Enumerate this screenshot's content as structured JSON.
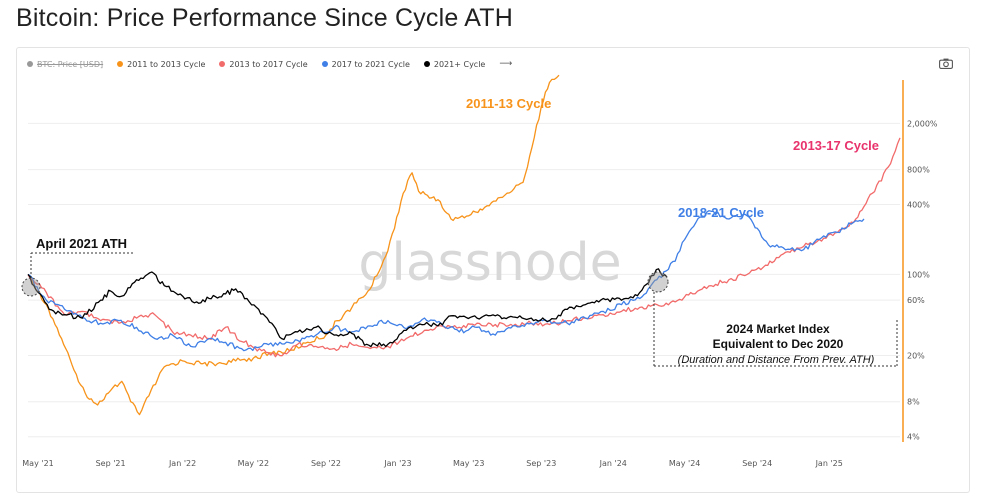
{
  "page": {
    "title": "Bitcoin: Price Performance Since Cycle ATH"
  },
  "toolbar": {
    "camera_icon": "camera-icon"
  },
  "legend": {
    "items": [
      {
        "label": "BTC: Price [USD]",
        "color": "#999999",
        "hidden": true
      },
      {
        "label": "2011 to 2013 Cycle",
        "color": "#f7931a"
      },
      {
        "label": "2013 to 2017 Cycle",
        "color": "#f26b6b"
      },
      {
        "label": "2017 to 2021 Cycle",
        "color": "#3f7fe6"
      },
      {
        "label": "2021+ Cycle",
        "color": "#000000"
      }
    ],
    "more_icon": "arrow-right-icon"
  },
  "watermark": "glassnode",
  "annotations": {
    "april_ath": "April 2021 ATH",
    "cycle_2011": "2011-13 Cycle",
    "cycle_2013": "2013-17 Cycle",
    "cycle_2018": "2018-21 Cycle",
    "market_index_line1": "2024 Market Index",
    "market_index_line2": "Equivalent to Dec 2020",
    "market_index_line3": "(Duration and Distance From Prev. ATH)"
  },
  "chart_data": {
    "type": "line",
    "title": "Bitcoin: Price Performance Since Cycle ATH",
    "x_ticks": [
      "May '21",
      "Sep '21",
      "Jan '22",
      "May '22",
      "Sep '22",
      "Jan '23",
      "May '23",
      "Sep '23",
      "Jan '24",
      "May '24",
      "Sep '24",
      "Jan '25"
    ],
    "y_scale": "log",
    "y_ticks": [
      "4%",
      "8%",
      "20%",
      "60%",
      "100%",
      "400%",
      "800%",
      "2,000%"
    ],
    "y_tick_values": [
      4,
      8,
      20,
      60,
      100,
      400,
      800,
      2000
    ],
    "ylim": [
      3.6,
      6000
    ],
    "grid": true,
    "legend_position": "top-left",
    "series": [
      {
        "name": "2011 to 2013 Cycle",
        "color": "#f7931a",
        "x": [
          "2021-04-14",
          "2021-05-15",
          "2021-06-10",
          "2021-07-01",
          "2021-07-20",
          "2021-08-10",
          "2021-09-01",
          "2021-09-20",
          "2021-10-05",
          "2021-10-20",
          "2021-11-05",
          "2021-12-01",
          "2022-01-01",
          "2022-02-01",
          "2022-03-01",
          "2022-04-01",
          "2022-05-01",
          "2022-06-01",
          "2022-07-01",
          "2022-08-01",
          "2022-09-01",
          "2022-09-20",
          "2022-10-15",
          "2022-11-15",
          "2022-12-15",
          "2023-01-10",
          "2023-01-25",
          "2023-02-05",
          "2023-02-20",
          "2023-03-10",
          "2023-04-01",
          "2023-05-01",
          "2023-06-01",
          "2023-07-01",
          "2023-08-01",
          "2023-08-20",
          "2023-09-01",
          "2023-09-15",
          "2023-10-01"
        ],
        "values": [
          100,
          55,
          28,
          15,
          9.5,
          7.5,
          10,
          12,
          8,
          6.2,
          9,
          16,
          18,
          17,
          17,
          18,
          19,
          21,
          22,
          26,
          30,
          40,
          52,
          75,
          160,
          500,
          750,
          520,
          480,
          440,
          300,
          320,
          390,
          480,
          620,
          1500,
          2800,
          4500,
          5200
        ]
      },
      {
        "name": "2013 to 2017 Cycle",
        "color": "#f26b6b",
        "x": [
          "2021-04-14",
          "2021-05-15",
          "2021-06-15",
          "2021-07-15",
          "2021-08-15",
          "2021-09-15",
          "2021-10-15",
          "2021-11-15",
          "2021-12-15",
          "2022-01-15",
          "2022-02-15",
          "2022-03-15",
          "2022-04-15",
          "2022-05-15",
          "2022-06-15",
          "2022-07-15",
          "2022-08-15",
          "2022-09-15",
          "2022-10-15",
          "2022-11-15",
          "2022-12-15",
          "2023-01-15",
          "2023-02-15",
          "2023-03-15",
          "2023-04-15",
          "2023-05-15",
          "2023-06-15",
          "2023-07-15",
          "2023-08-15",
          "2023-09-15",
          "2023-10-15",
          "2023-11-15",
          "2023-12-15",
          "2024-01-15",
          "2024-02-15",
          "2024-03-15",
          "2024-04-15",
          "2024-05-15",
          "2024-06-15",
          "2024-07-15",
          "2024-08-15",
          "2024-09-15",
          "2024-10-15",
          "2024-11-15",
          "2024-12-15",
          "2025-01-15",
          "2025-02-15",
          "2025-03-15",
          "2025-04-15",
          "2025-05-01"
        ],
        "values": [
          100,
          70,
          45,
          48,
          40,
          38,
          42,
          45,
          32,
          30,
          28,
          35,
          26,
          22,
          20,
          25,
          24,
          23,
          25,
          23,
          24,
          28,
          33,
          36,
          35,
          38,
          37,
          36,
          38,
          37,
          40,
          42,
          45,
          48,
          52,
          55,
          58,
          68,
          80,
          90,
          100,
          120,
          150,
          170,
          200,
          230,
          300,
          500,
          900,
          1500
        ]
      },
      {
        "name": "2017 to 2021 Cycle",
        "color": "#3f7fe6",
        "x": [
          "2021-04-14",
          "2021-05-15",
          "2021-06-15",
          "2021-07-15",
          "2021-08-15",
          "2021-09-15",
          "2021-10-15",
          "2021-11-15",
          "2021-12-15",
          "2022-01-15",
          "2022-02-15",
          "2022-03-15",
          "2022-04-15",
          "2022-05-15",
          "2022-06-15",
          "2022-07-15",
          "2022-08-15",
          "2022-09-15",
          "2022-10-15",
          "2022-11-15",
          "2022-12-15",
          "2023-01-15",
          "2023-02-15",
          "2023-03-15",
          "2023-04-15",
          "2023-05-15",
          "2023-06-15",
          "2023-07-15",
          "2023-08-15",
          "2023-09-15",
          "2023-10-15",
          "2023-11-15",
          "2023-12-15",
          "2024-01-15",
          "2024-02-15",
          "2024-03-15",
          "2024-04-15",
          "2024-05-01",
          "2024-05-20",
          "2024-06-15",
          "2024-07-15",
          "2024-08-15",
          "2024-09-01",
          "2024-09-20",
          "2024-10-15",
          "2024-11-15",
          "2024-12-15",
          "2025-01-15",
          "2025-02-15",
          "2025-03-01"
        ],
        "values": [
          100,
          60,
          50,
          42,
          38,
          40,
          35,
          28,
          30,
          24,
          28,
          26,
          22,
          24,
          26,
          27,
          30,
          35,
          32,
          36,
          40,
          34,
          42,
          38,
          32,
          35,
          30,
          36,
          38,
          40,
          38,
          42,
          48,
          55,
          62,
          90,
          130,
          200,
          280,
          350,
          300,
          320,
          250,
          180,
          170,
          160,
          200,
          230,
          290,
          300
        ]
      },
      {
        "name": "2021+ Cycle",
        "color": "#000000",
        "x": [
          "2021-04-14",
          "2021-05-01",
          "2021-05-20",
          "2021-06-15",
          "2021-07-15",
          "2021-08-15",
          "2021-09-01",
          "2021-09-20",
          "2021-10-15",
          "2021-11-10",
          "2021-12-01",
          "2022-01-01",
          "2022-01-25",
          "2022-02-15",
          "2022-03-15",
          "2022-04-01",
          "2022-04-20",
          "2022-05-10",
          "2022-06-01",
          "2022-06-18",
          "2022-07-15",
          "2022-08-15",
          "2022-09-15",
          "2022-10-15",
          "2022-11-09",
          "2022-12-15",
          "2023-01-15",
          "2023-02-15",
          "2023-03-10",
          "2023-04-01",
          "2023-05-15",
          "2023-06-15",
          "2023-07-15",
          "2023-08-15",
          "2023-09-15",
          "2023-10-15",
          "2023-11-15",
          "2023-12-15",
          "2024-01-15",
          "2024-02-15",
          "2024-03-01",
          "2024-03-14",
          "2024-04-01"
        ],
        "values": [
          100,
          70,
          50,
          45,
          42,
          60,
          72,
          65,
          90,
          105,
          80,
          65,
          58,
          62,
          68,
          75,
          62,
          50,
          38,
          28,
          32,
          35,
          30,
          31,
          25,
          25,
          33,
          37,
          36,
          44,
          42,
          44,
          43,
          42,
          40,
          50,
          55,
          62,
          60,
          70,
          85,
          110,
          95
        ]
      }
    ]
  }
}
